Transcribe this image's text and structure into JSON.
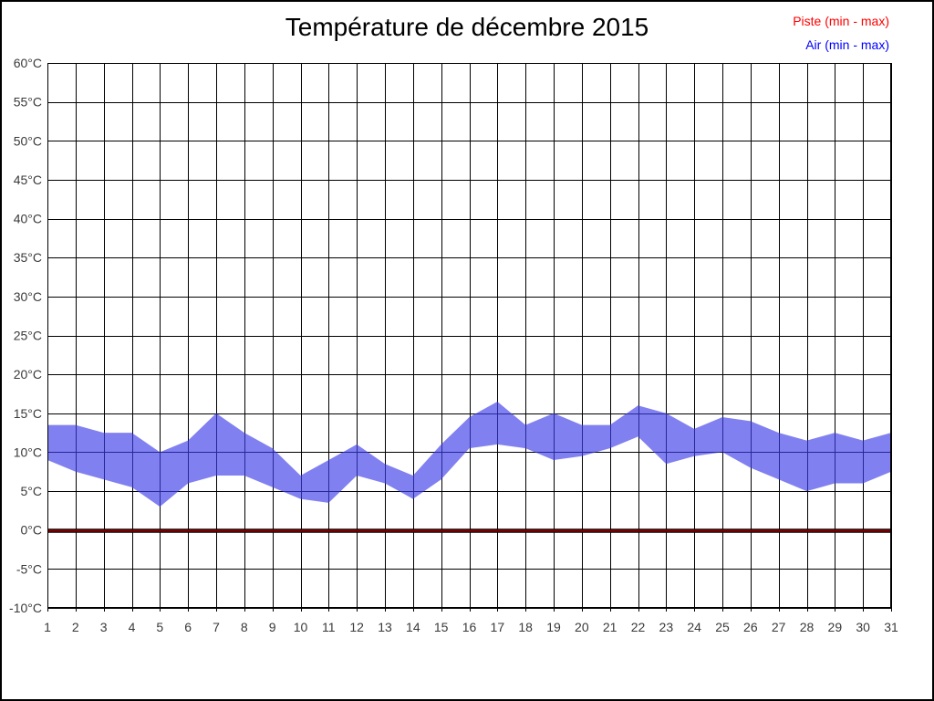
{
  "title": "Température de décembre 2015",
  "legend": {
    "piste_label": "Piste (min - max)",
    "piste_color": "#ff0000",
    "air_label": "Air (min - max)",
    "air_color": "#0000ff",
    "position": "top-right"
  },
  "chart_data": {
    "type": "area",
    "subtype": "min-max range bands per day",
    "title": "Température de décembre 2015",
    "xlabel": "",
    "ylabel": "°C",
    "x": [
      1,
      2,
      3,
      4,
      5,
      6,
      7,
      8,
      9,
      10,
      11,
      12,
      13,
      14,
      15,
      16,
      17,
      18,
      19,
      20,
      21,
      22,
      23,
      24,
      25,
      26,
      27,
      28,
      29,
      30,
      31
    ],
    "xtick_labels": [
      "1",
      "2",
      "3",
      "4",
      "5",
      "6",
      "7",
      "8",
      "9",
      "10",
      "11",
      "12",
      "13",
      "14",
      "15",
      "16",
      "17",
      "18",
      "19",
      "20",
      "21",
      "22",
      "23",
      "24",
      "25",
      "26",
      "27",
      "28",
      "29",
      "30",
      "31"
    ],
    "ylim": [
      -10,
      60
    ],
    "ytick_step": 5,
    "ytick_labels": [
      "60°C",
      "55°C",
      "50°C",
      "45°C",
      "40°C",
      "35°C",
      "30°C",
      "25°C",
      "20°C",
      "15°C",
      "10°C",
      "5°C",
      "0°C",
      "-5°C",
      "-10°C"
    ],
    "grid": true,
    "legend_position": "top-right",
    "series": [
      {
        "name": "Piste (min - max)",
        "legend_color": "#ff0000",
        "line_color": "#7d0101",
        "edge_color": "#000000",
        "min": [
          0,
          0,
          0,
          0,
          0,
          0,
          0,
          0,
          0,
          0,
          0,
          0,
          0,
          0,
          0,
          0,
          0,
          0,
          0,
          0,
          0,
          0,
          0,
          0,
          0,
          0,
          0,
          0,
          0,
          0,
          0
        ],
        "max": [
          0,
          0,
          0,
          0,
          0,
          0,
          0,
          0,
          0,
          0,
          0,
          0,
          0,
          0,
          0,
          0,
          0,
          0,
          0,
          0,
          0,
          0,
          0,
          0,
          0,
          0,
          0,
          0,
          0,
          0,
          0
        ]
      },
      {
        "name": "Air (min - max)",
        "legend_color": "#0000ff",
        "fill_color": "#3c3ce8",
        "fill_opacity": 0.65,
        "min": [
          9,
          7.5,
          6.5,
          5.5,
          3,
          6,
          7,
          7,
          5.5,
          4,
          3.5,
          7,
          6,
          4,
          6.5,
          10.5,
          11,
          10.5,
          9,
          9.5,
          10.5,
          12,
          8.5,
          9.5,
          10,
          8,
          6.5,
          5,
          6,
          6,
          7.5
        ],
        "max": [
          13.5,
          13.5,
          12.5,
          12.5,
          10,
          11.5,
          15,
          12.5,
          10.5,
          7,
          9,
          11,
          8.5,
          7,
          11,
          14.5,
          16.5,
          13.5,
          15,
          13.5,
          13.5,
          16,
          15,
          13,
          14.5,
          14,
          12.5,
          11.5,
          12.5,
          11.5,
          12.5
        ]
      }
    ],
    "zero_line_value": 0
  },
  "axis_style": {
    "tick_label_color": "#3a3a3a",
    "grid_color": "#000000"
  }
}
